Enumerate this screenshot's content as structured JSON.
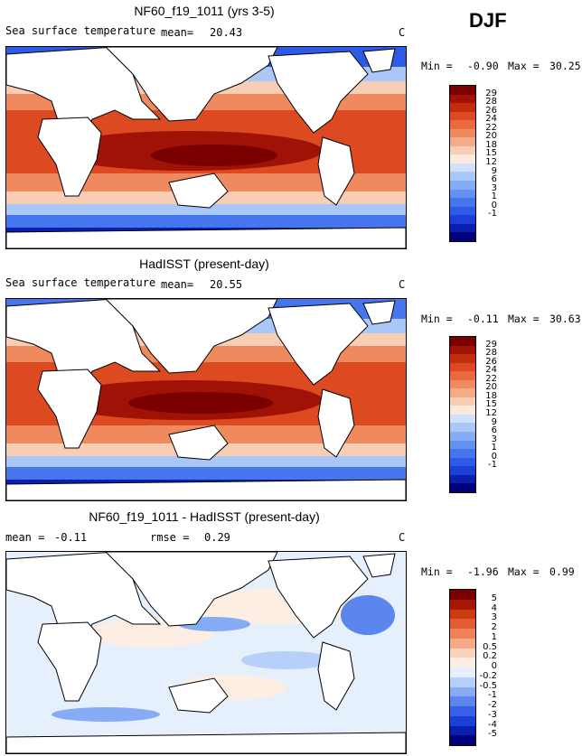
{
  "season": "DJF",
  "colors": {
    "sst": [
      "#00007a",
      "#0a1fb0",
      "#1c3fd6",
      "#2e5ae8",
      "#4676ee",
      "#6592f2",
      "#86acf5",
      "#a9c8f8",
      "#cfe2fb",
      "#fbe9de",
      "#f7cdb4",
      "#f4ab87",
      "#ef8a5f",
      "#e96a3d",
      "#dd4a21",
      "#c22c0f",
      "#a01206",
      "#7a0000"
    ],
    "diff": [
      "#00007a",
      "#0a1fb0",
      "#1c3fd6",
      "#3862e6",
      "#5a86ee",
      "#86acf5",
      "#b6d0f9",
      "#e6f0fc",
      "#fdeee4",
      "#f9d3bc",
      "#f4ab87",
      "#ee8258",
      "#e35c2f",
      "#cc3a12",
      "#a81606",
      "#7a0000"
    ]
  },
  "chart_data": [
    {
      "type": "heatmap",
      "panel": "model",
      "title": "NF60_f19_1011 (yrs 3-5)",
      "field_label": "Sea surface temperature",
      "mean_label": "mean=",
      "mean_value": "20.43",
      "units": "C",
      "min_label": "Min =",
      "min_value": "-0.90",
      "max_label": "Max =",
      "max_value": "30.25",
      "colorbar_levels": [
        "29",
        "28",
        "26",
        "24",
        "22",
        "20",
        "18",
        "15",
        "12",
        "9",
        "6",
        "3",
        "1",
        "0",
        "-1"
      ]
    },
    {
      "type": "heatmap",
      "panel": "observed",
      "title": "HadISST (present-day)",
      "field_label": "Sea surface temperature",
      "mean_label": "mean=",
      "mean_value": "20.55",
      "units": "C",
      "min_label": "Min =",
      "min_value": "-0.11",
      "max_label": "Max =",
      "max_value": "30.63",
      "colorbar_levels": [
        "29",
        "28",
        "26",
        "24",
        "22",
        "20",
        "18",
        "15",
        "12",
        "9",
        "6",
        "3",
        "1",
        "0",
        "-1"
      ]
    },
    {
      "type": "heatmap",
      "panel": "difference",
      "title": "NF60_f19_1011 - HadISST (present-day)",
      "mean_label": "mean =",
      "mean_value": "-0.11",
      "rmse_label": "rmse =",
      "rmse_value": "0.29",
      "units": "C",
      "min_label": "Min =",
      "min_value": "-1.96",
      "max_label": "Max =",
      "max_value": "0.99",
      "colorbar_levels": [
        "5",
        "4",
        "3",
        "2",
        "1",
        "0.5",
        "0.2",
        "0",
        "-0.2",
        "-0.5",
        "-1",
        "-2",
        "-3",
        "-4",
        "-5"
      ]
    }
  ]
}
